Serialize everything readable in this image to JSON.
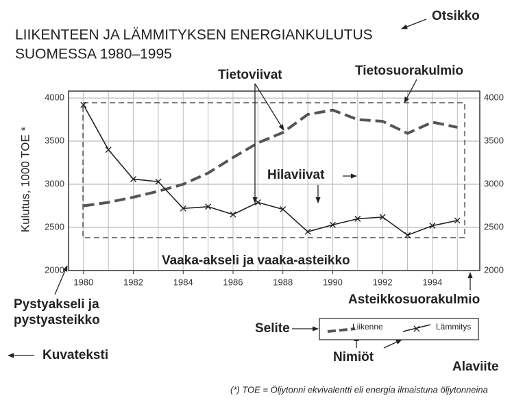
{
  "chart_data": {
    "type": "line",
    "title_lines": [
      "LIIKENTEEN JA LÄMMITYKSEN ENERGIANKULUTUS",
      "SUOMESSA 1980–1995"
    ],
    "ylabel": "Kulutus, 1000 TOE *",
    "x": [
      1980,
      1981,
      1982,
      1983,
      1984,
      1985,
      1986,
      1987,
      1988,
      1989,
      1990,
      1991,
      1992,
      1993,
      1994,
      1995
    ],
    "series": [
      {
        "name": "Liikenne",
        "color": "#555555",
        "style": "dashed",
        "values": [
          2750,
          2790,
          2850,
          2920,
          3000,
          3130,
          3310,
          3480,
          3600,
          3810,
          3860,
          3750,
          3730,
          3590,
          3720,
          3660
        ]
      },
      {
        "name": "Lämmitys",
        "color": "#222222",
        "style": "cross",
        "values": [
          3920,
          3400,
          3060,
          3030,
          2720,
          2740,
          2650,
          2790,
          2710,
          2450,
          2530,
          2600,
          2620,
          2410,
          2520,
          2580
        ]
      }
    ],
    "xlim": [
      1979.4,
      1995.9
    ],
    "ylim": [
      2000,
      4080
    ],
    "xticks": [
      1980,
      1982,
      1984,
      1986,
      1988,
      1990,
      1992,
      1994
    ],
    "yticks": [
      2000,
      2500,
      3000,
      3500,
      4000
    ],
    "grid": true,
    "legend": "bottom-right",
    "annotations": {
      "otsikko": "Otsikko",
      "tietoviivat": "Tietoviivat",
      "tietosuorakulmio": "Tietosuorakulmio",
      "hilaviivat": "Hilaviivat",
      "vaaka": "Vaaka-akseli ja vaaka-asteikko",
      "pysty": [
        "Pystyakseli ja",
        "pystyasteikko"
      ],
      "asteikko": "Asteikkosuorakulmio",
      "selite": "Selite",
      "nimiot": "Nimiöt",
      "kuvateksti": "Kuvateksti",
      "alaviite": "Alaviite"
    },
    "footnote": "(*) TOE = Öljytonni ekvivalentti eli energia ilmaistuna öljytonneina"
  }
}
